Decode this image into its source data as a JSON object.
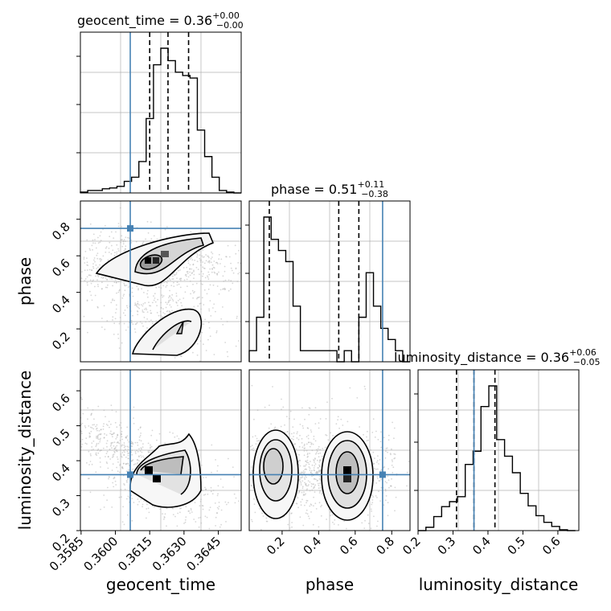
{
  "titles": {
    "geocent_time": {
      "name": "geocent_time",
      "value": "0.36",
      "plus": "+0.00",
      "minus": "−0.00"
    },
    "phase": {
      "name": "phase",
      "value": "0.51",
      "plus": "+0.11",
      "minus": "−0.38"
    },
    "luminosity_distance": {
      "name": "luminosity_distance",
      "value": "0.36",
      "plus": "+0.06",
      "minus": "−0.05"
    }
  },
  "labels": {
    "x": [
      "geocent_time",
      "phase",
      "luminosity_distance"
    ],
    "y": [
      "phase",
      "luminosity_distance"
    ]
  },
  "colors": {
    "truth": "#4682b4",
    "hist": "#000000",
    "points": "#b0b0b0",
    "grid": "#b0b0b0"
  },
  "chart_data": {
    "type": "corner",
    "parameters": [
      "geocent_time",
      "phase",
      "luminosity_distance"
    ],
    "truths": {
      "geocent_time": 0.36065,
      "phase": 0.75,
      "luminosity_distance": 0.36
    },
    "ranges": {
      "geocent_time": [
        0.35847,
        0.3655
      ],
      "phase": [
        0.02,
        0.9
      ],
      "luminosity_distance": [
        0.2,
        0.66
      ]
    },
    "ticks": {
      "geocent_time": [
        "0.3585",
        "0.3600",
        "0.3615",
        "0.3630",
        "0.3645"
      ],
      "phase": [
        "0.2",
        "0.4",
        "0.6",
        "0.8"
      ],
      "luminosity_distance": [
        "0.2",
        "0.3",
        "0.4",
        "0.5",
        "0.6"
      ]
    },
    "quantiles": {
      "geocent_time": [
        0.3615,
        0.3623,
        0.3632
      ],
      "phase": [
        0.13,
        0.51,
        0.62
      ],
      "luminosity_distance": [
        0.31,
        0.36,
        0.42
      ]
    },
    "hist_geocent_time": {
      "x0": 0.35847,
      "x1": 0.3655,
      "counts": [
        1,
        3,
        3,
        5,
        6,
        8,
        14,
        19,
        38,
        90,
        155,
        175,
        160,
        146,
        142,
        139,
        76,
        44,
        19,
        3,
        1,
        0
      ]
    },
    "hist_phase": {
      "x0": 0.02,
      "x1": 0.9,
      "counts": [
        1,
        4,
        13,
        11,
        10,
        9,
        5,
        1,
        1,
        1,
        1,
        1,
        0,
        1,
        0,
        4,
        8,
        5,
        3,
        2,
        1,
        0
      ]
    },
    "hist_luminosity_distance": {
      "x0": 0.2,
      "x1": 0.65,
      "counts": [
        0,
        4,
        17,
        29,
        35,
        41,
        80,
        96,
        150,
        175,
        110,
        90,
        70,
        45,
        30,
        18,
        10,
        5,
        1,
        0
      ]
    },
    "grid": true
  }
}
